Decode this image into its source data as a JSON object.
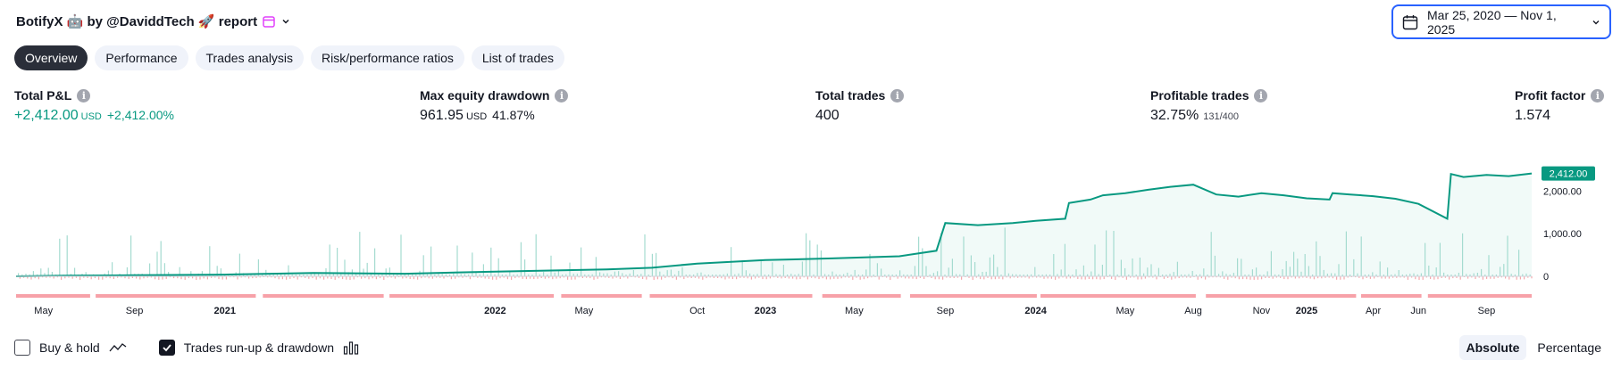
{
  "header": {
    "title": "BotifyX 🤖 by @DaviddTech 🚀 report",
    "calendar_icon": "calendar-icon",
    "accent": "#2962ff"
  },
  "date_range": {
    "label": "Mar 25, 2020 — Nov 1, 2025"
  },
  "tabs": [
    {
      "label": "Overview",
      "active": true
    },
    {
      "label": "Performance",
      "active": false
    },
    {
      "label": "Trades analysis",
      "active": false
    },
    {
      "label": "Risk/performance ratios",
      "active": false
    },
    {
      "label": "List of trades",
      "active": false
    }
  ],
  "stats": {
    "total_pl": {
      "label": "Total P&L",
      "value": "+2,412.00",
      "unit": "USD",
      "pct": "+2,412.00%"
    },
    "max_dd": {
      "label": "Max equity drawdown",
      "value": "961.95",
      "unit": "USD",
      "pct": "41.87%"
    },
    "total_trades": {
      "label": "Total trades",
      "value": "400"
    },
    "profitable": {
      "label": "Profitable trades",
      "value": "32.75%",
      "ratio": "131/400"
    },
    "profit_factor": {
      "label": "Profit factor",
      "value": "1.574"
    }
  },
  "colors": {
    "positive": "#089981",
    "negative": "#f7525f",
    "fill": "#f1faf8"
  },
  "chart_data": {
    "type": "area",
    "series": [
      {
        "name": "",
        "x": [
          "2020-03-25",
          "2020-06-01",
          "2020-09-01",
          "2021-01-01",
          "2021-05-01",
          "2021-09-01",
          "2022-01-01",
          "2022-04-01",
          "2022-06-01",
          "2022-08-01",
          "2022-10-01",
          "2023-01-01",
          "2023-04-01",
          "2023-07-01",
          "2023-08-20",
          "2023-09-01",
          "2023-10-15",
          "2023-12-01",
          "2024-01-01",
          "2024-02-10",
          "2024-02-15",
          "2024-03-15",
          "2024-04-01",
          "2024-05-01",
          "2024-06-01",
          "2024-07-01",
          "2024-08-01",
          "2024-09-01",
          "2024-10-01",
          "2024-11-01",
          "2024-12-01",
          "2025-01-01",
          "2025-02-01",
          "2025-02-05",
          "2025-03-01",
          "2025-04-01",
          "2025-05-01",
          "2025-06-01",
          "2025-07-10",
          "2025-07-15",
          "2025-08-01",
          "2025-09-01",
          "2025-10-01",
          "2025-11-01"
        ],
        "values": [
          0,
          15,
          25,
          40,
          80,
          60,
          110,
          140,
          160,
          200,
          300,
          380,
          420,
          470,
          600,
          1250,
          1200,
          1250,
          1300,
          1350,
          1720,
          1800,
          1900,
          1950,
          2030,
          2100,
          2150,
          1920,
          1870,
          1950,
          1900,
          1830,
          1800,
          1950,
          1920,
          1880,
          1820,
          1700,
          1350,
          2400,
          2330,
          2380,
          2350,
          2412
        ]
      }
    ],
    "y_ticks": [
      "0",
      "1,000.00",
      "2,000.00"
    ],
    "ylim": [
      -100,
      2600
    ],
    "last_value_label": "2,412.00",
    "x_tick_labels": [
      "May",
      "Sep",
      "2021",
      "2022",
      "May",
      "Oct",
      "2023",
      "May",
      "Sep",
      "2024",
      "May",
      "Aug",
      "Nov",
      "2025",
      "Apr",
      "Jun",
      "Sep"
    ],
    "x_ticks_bold": [
      "2021",
      "2022",
      "2023",
      "2024",
      "2025"
    ],
    "x_tick_dates": [
      "2020-05-01",
      "2020-09-01",
      "2021-01-01",
      "2022-01-01",
      "2022-05-01",
      "2022-10-01",
      "2023-01-01",
      "2023-05-01",
      "2023-09-01",
      "2024-01-01",
      "2024-05-01",
      "2024-08-01",
      "2024-11-01",
      "2025-01-01",
      "2025-04-01",
      "2025-06-01",
      "2025-09-01"
    ],
    "grid": false,
    "legend": "none"
  },
  "footer": {
    "buy_hold": {
      "label": "Buy & hold",
      "checked": false
    },
    "runup": {
      "label": "Trades run-up & drawdown",
      "checked": true
    },
    "absolute": "Absolute",
    "percentage": "Percentage"
  }
}
